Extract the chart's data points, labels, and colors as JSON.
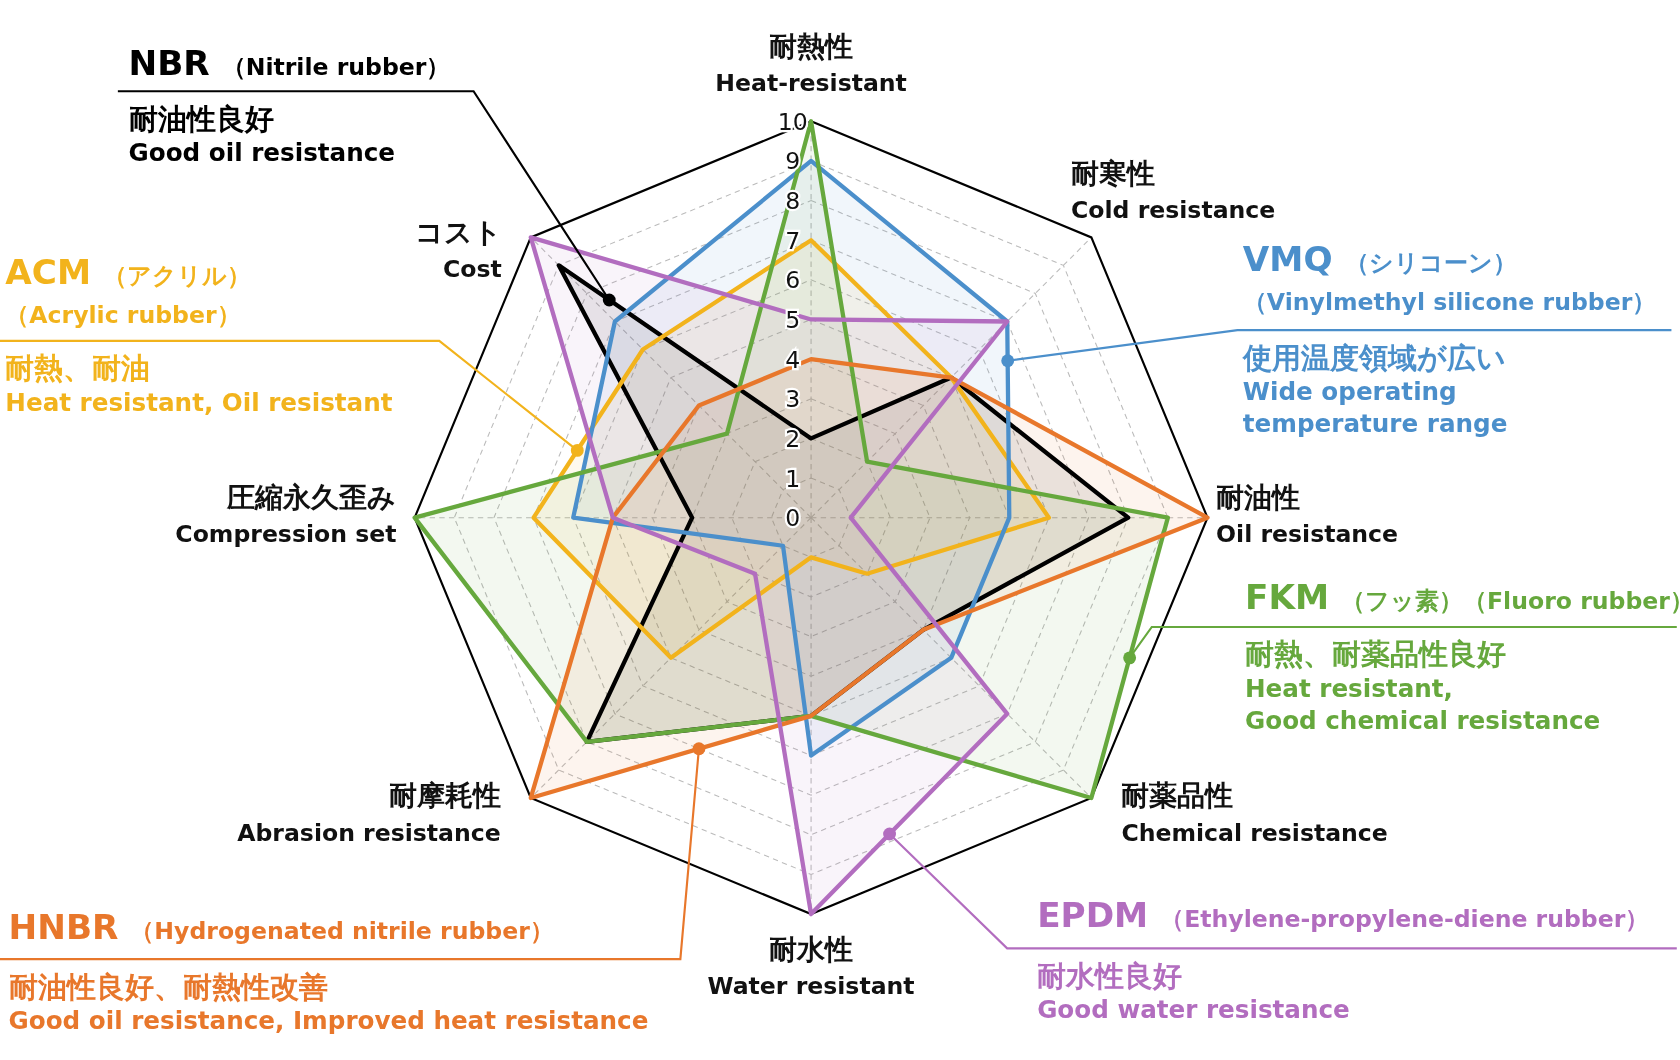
{
  "chart_data": {
    "type": "radar",
    "categories": [
      "耐熱性\nHeat-resistant",
      "耐寒性\nCold resistance",
      "耐油性\nOil resistance",
      "耐薬品性\nChemical resistance",
      "耐水性\nWater resistant",
      "耐摩耗性\nAbrasion resistance",
      "圧縮永久歪み\nCompression set",
      "コスト\nCost"
    ],
    "series": [
      {
        "name": "NBR（Nitrile rubber）",
        "color": "#000000",
        "values": [
          2,
          5,
          8,
          4,
          5,
          8,
          3,
          9
        ]
      },
      {
        "name": "ACM（アクリル）（Acrylic rubber）",
        "color": "#f2b31c",
        "values": [
          7,
          5,
          6,
          2,
          1,
          5,
          7,
          6
        ]
      },
      {
        "name": "VMQ（シリコーン）（Vinylmethyl silicone rubber）",
        "color": "#4b8fcb",
        "values": [
          9,
          7,
          5,
          5,
          6,
          1,
          6,
          7
        ]
      },
      {
        "name": "FKM（フッ素）（Fluoro rubber）",
        "color": "#66a83d",
        "values": [
          10,
          2,
          9,
          10,
          5,
          8,
          10,
          3
        ]
      },
      {
        "name": "HNBR（Hydrogenated nitrile rubber）",
        "color": "#e8772b",
        "values": [
          4,
          5,
          10,
          4,
          5,
          10,
          5,
          4
        ]
      },
      {
        "name": "EPDM（Ethylene-propylene-diene rubber）",
        "color": "#b26dbf",
        "values": [
          5,
          7,
          1,
          7,
          10,
          2,
          5,
          10
        ]
      }
    ],
    "ylim": [
      0,
      10
    ],
    "yticks": [
      0,
      1,
      2,
      3,
      4,
      5,
      6,
      7,
      8,
      9,
      10
    ],
    "grid": true,
    "annotations": [
      "耐油性良好\nGood oil resistance",
      "耐熱、耐油\nHeat resistant, Oil resistant",
      "使用温度領域が広い\nWide operating\ntemperature range",
      "耐熱、耐薬品性良好\nHeat resistant,\nGood chemical resistance",
      "耐油性良好、耐熱性改善\nGood oil resistance, Improved heat resistance",
      "耐水性良好\nGood water resistance"
    ]
  }
}
